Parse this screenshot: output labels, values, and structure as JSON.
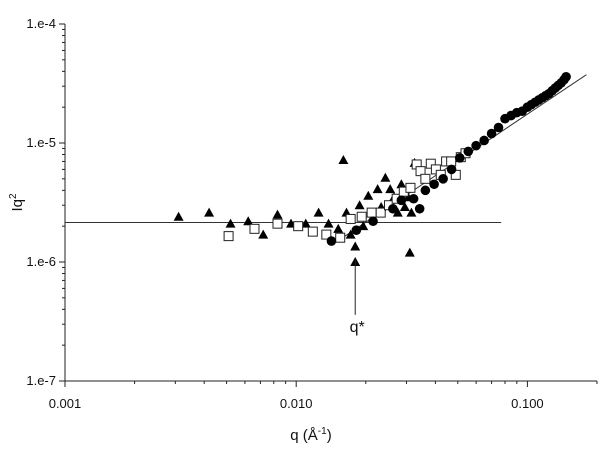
{
  "chart_data": {
    "type": "scatter",
    "title": "",
    "xlabel": {
      "base": "q (Å",
      "sup": "-1",
      "end": ")"
    },
    "ylabel": {
      "base": "Iq",
      "sup": "2"
    },
    "x_scale": "log",
    "y_scale": "log",
    "xlim": [
      0.001,
      0.2
    ],
    "ylim": [
      1e-07,
      0.0001
    ],
    "x_ticks": [
      {
        "value": 0.001,
        "label": "0.001"
      },
      {
        "value": 0.01,
        "label": "0.010"
      },
      {
        "value": 0.1,
        "label": "0.100"
      }
    ],
    "y_ticks": [
      {
        "value": 1e-07,
        "label": "1.e-7"
      },
      {
        "value": 1e-06,
        "label": "1.e-6"
      },
      {
        "value": 1e-05,
        "label": "1.e-5"
      },
      {
        "value": 0.0001,
        "label": "1.e-4"
      }
    ],
    "grid": false,
    "legend": "none",
    "series": [
      {
        "marker": "triangle-filled",
        "x": [
          0.0031,
          0.0042,
          0.0052,
          0.0062,
          0.0072,
          0.0083,
          0.0095,
          0.011,
          0.0125,
          0.0138,
          0.0152,
          0.016,
          0.0165,
          0.0172,
          0.018,
          0.018,
          0.0188,
          0.0195,
          0.0205,
          0.0215,
          0.0225,
          0.0233,
          0.0243,
          0.0255,
          0.0265,
          0.0275,
          0.0285,
          0.0295,
          0.0305,
          0.031,
          0.0315,
          0.0325
        ],
        "y": [
          2.4e-06,
          2.6e-06,
          2.1e-06,
          2.2e-06,
          1.7e-06,
          2.5e-06,
          2.1e-06,
          2.1e-06,
          2.6e-06,
          2.1e-06,
          1.9e-06,
          7.2e-06,
          2.6e-06,
          1.7e-06,
          1.35e-06,
          1e-06,
          3e-06,
          2e-06,
          3.6e-06,
          2.6e-06,
          4.1e-06,
          2.9e-06,
          5.1e-06,
          4.1e-06,
          3.5e-06,
          2.6e-06,
          4.5e-06,
          2.9e-06,
          3.5e-06,
          1.2e-06,
          2.6e-06,
          6.8e-06
        ]
      },
      {
        "marker": "square-open",
        "x": [
          0.0051,
          0.0066,
          0.0083,
          0.0102,
          0.0118,
          0.0135,
          0.0155,
          0.0172,
          0.0192,
          0.0212,
          0.0232,
          0.0252,
          0.0272,
          0.0292,
          0.0312,
          0.0332,
          0.0345,
          0.0362,
          0.0382,
          0.0402,
          0.0422,
          0.0445,
          0.0468,
          0.049,
          0.0515,
          0.054
        ],
        "y": [
          1.65e-06,
          1.9e-06,
          2.1e-06,
          2e-06,
          1.8e-06,
          1.7e-06,
          1.6e-06,
          2.3e-06,
          2.4e-06,
          2.6e-06,
          2.6e-06,
          3e-06,
          3.4e-06,
          3.9e-06,
          4.2e-06,
          6.6e-06,
          5.8e-06,
          5e-06,
          6.7e-06,
          6e-06,
          5.4e-06,
          7e-06,
          7e-06,
          5.4e-06,
          7.6e-06,
          8.2e-06
        ]
      },
      {
        "marker": "circle-filled",
        "x": [
          0.0142,
          0.0182,
          0.0215,
          0.0262,
          0.0285,
          0.0322,
          0.0342,
          0.0362,
          0.0395,
          0.0432,
          0.047,
          0.051,
          0.0555,
          0.06,
          0.065,
          0.07,
          0.075,
          0.08,
          0.085,
          0.09,
          0.095,
          0.1,
          0.104,
          0.108,
          0.112,
          0.116,
          0.12,
          0.124,
          0.128,
          0.132,
          0.136,
          0.14,
          0.144,
          0.147
        ],
        "y": [
          1.5e-06,
          1.85e-06,
          2.2e-06,
          2.8e-06,
          3.3e-06,
          3.4e-06,
          2.8e-06,
          4e-06,
          4.5e-06,
          5e-06,
          6e-06,
          7.5e-06,
          8.5e-06,
          9.5e-06,
          1.05e-05,
          1.2e-05,
          1.35e-05,
          1.6e-05,
          1.7e-05,
          1.8e-05,
          1.85e-05,
          2e-05,
          2.1e-05,
          2.2e-05,
          2.3e-05,
          2.4e-05,
          2.5e-05,
          2.6e-05,
          2.75e-05,
          2.9e-05,
          3.05e-05,
          3.2e-05,
          3.4e-05,
          3.6e-05
        ]
      }
    ],
    "fit_lines": [
      {
        "x": [
          0.001,
          0.077
        ],
        "y": [
          2.15e-06,
          2.15e-06
        ]
      },
      {
        "x": [
          0.0155,
          0.18
        ],
        "y": [
          1.55e-06,
          3.75e-05
        ]
      }
    ],
    "annotation": {
      "text": "q*",
      "x": 0.018,
      "y_top": 1.05e-06,
      "y_bottom": 3.6e-07
    }
  }
}
